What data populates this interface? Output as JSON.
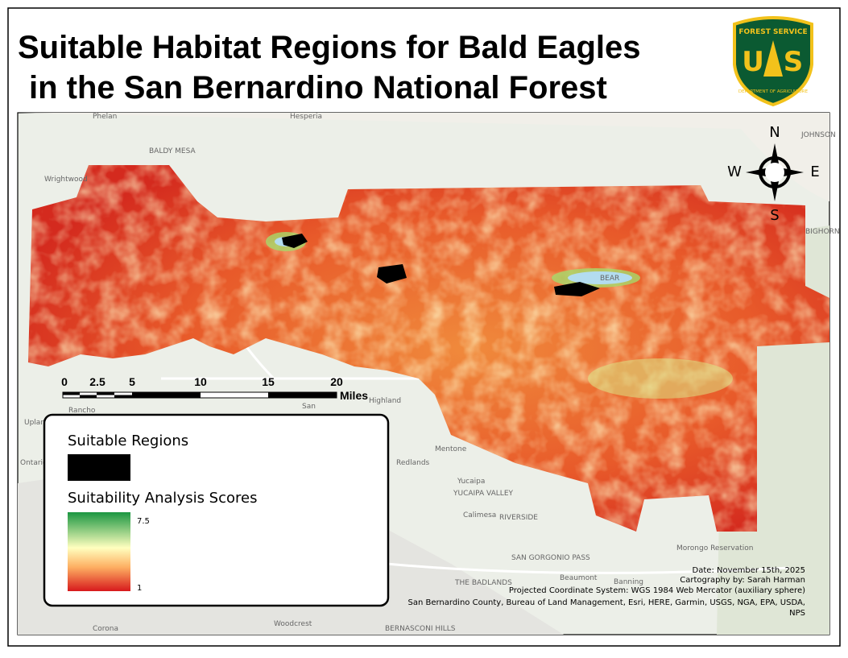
{
  "title": {
    "line1": "Suitable Habitat Regions for Bald Eagles",
    "line2": "in the San Bernardino National Forest"
  },
  "logo": {
    "top": "FOREST SERVICE",
    "left": "U",
    "right": "S",
    "bottom": "DEPARTMENT OF AGRICULTURE"
  },
  "compass": {
    "north": "N",
    "south": "S",
    "east": "E",
    "west": "W"
  },
  "scale_bar": {
    "labels": [
      "0",
      "2.5",
      "5",
      "10",
      "15",
      "20"
    ],
    "unit": "Miles"
  },
  "legend": {
    "suitable_title": "Suitable Regions",
    "scores_title": "Suitability Analysis Scores",
    "high": "7.5",
    "low": "1"
  },
  "credits": {
    "date": "Date: November 15th, 2025",
    "author": "Cartography by: Sarah Harman",
    "projection": "Projected Coordinate System: WGS 1984 Web Mercator (auxiliary sphere)",
    "sources": "San Bernardino County, Bureau of Land Management, Esri, HERE, Garmin, USGS, NGA, EPA, USDA,",
    "sources2": "NPS"
  },
  "places": [
    "Phelan",
    "Hesperia",
    "BALDY MESA",
    "Wrightwood",
    "Rancho",
    "Upland",
    "Ontario",
    "Highland",
    "Mentone",
    "Redlands",
    "Yucaipa",
    "YUCAIPA VALLEY",
    "Calimesa",
    "RIVERSIDE",
    "SAN GORGONIO PASS",
    "Beaumont",
    "Banning",
    "THE BADLANDS",
    "Corona",
    "Woodcrest",
    "BERNASCONI HILLS",
    "Morongo Reservation",
    "JOHNSON",
    "BIGHORN",
    "San",
    "BEAR"
  ]
}
